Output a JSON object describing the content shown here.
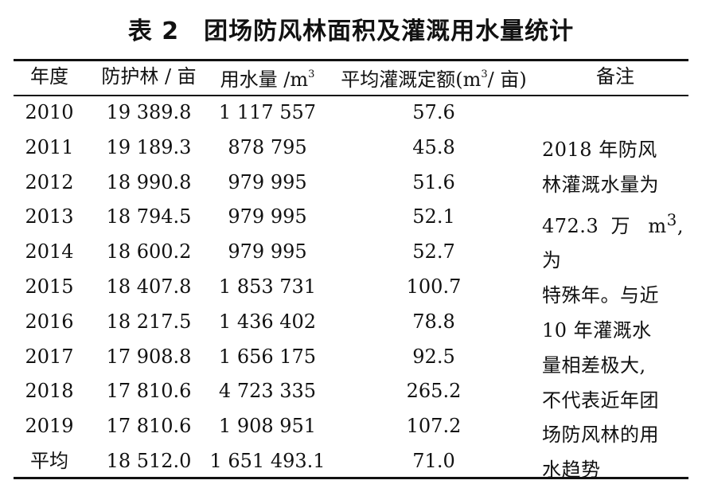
{
  "title": "表 2　团场防风林面积及灌溉用水量统计",
  "headers": {
    "year": "年度",
    "forest": "防护林 / 亩",
    "water_pre": "用水量 /m",
    "water_sup": "3",
    "quota_pre": "平均灌溉定额(m",
    "quota_sup": "3",
    "quota_post": "/ 亩)",
    "note": "备注"
  },
  "rows": [
    {
      "year": "2010",
      "forest": "19 389.8",
      "water": "1 117 557",
      "quota": "57.6"
    },
    {
      "year": "2011",
      "forest": "19 189.3",
      "water": "878 795",
      "quota": "45.8"
    },
    {
      "year": "2012",
      "forest": "18 990.8",
      "water": "979 995",
      "quota": "51.6"
    },
    {
      "year": "2013",
      "forest": "18 794.5",
      "water": "979 995",
      "quota": "52.1"
    },
    {
      "year": "2014",
      "forest": "18 600.2",
      "water": "979 995",
      "quota": "52.7"
    },
    {
      "year": "2015",
      "forest": "18 407.8",
      "water": "1 853 731",
      "quota": "100.7"
    },
    {
      "year": "2016",
      "forest": "18 217.5",
      "water": "1 436 402",
      "quota": "78.8"
    },
    {
      "year": "2017",
      "forest": "17 908.8",
      "water": "1 656 175",
      "quota": "92.5"
    },
    {
      "year": "2018",
      "forest": "17 810.6",
      "water": "4 723 335",
      "quota": "265.2"
    },
    {
      "year": "2019",
      "forest": "17 810.6",
      "water": "1 908 951",
      "quota": "107.2"
    },
    {
      "year": "平均",
      "forest": "18 512.0",
      "water": "1 651 493.1",
      "quota": "71.0"
    }
  ],
  "note": {
    "line1": "2018 年防风",
    "line2": "林灌溉水量为",
    "line3_pre": "472.3 万 m",
    "line3_sup": "3",
    "line3_post": ",为",
    "line4": "特殊年。与近",
    "line5": "10 年灌溉水",
    "line6": "量相差极大,",
    "line7": "不代表近年团",
    "line8": "场防风林的用",
    "line9": "水趋势"
  }
}
